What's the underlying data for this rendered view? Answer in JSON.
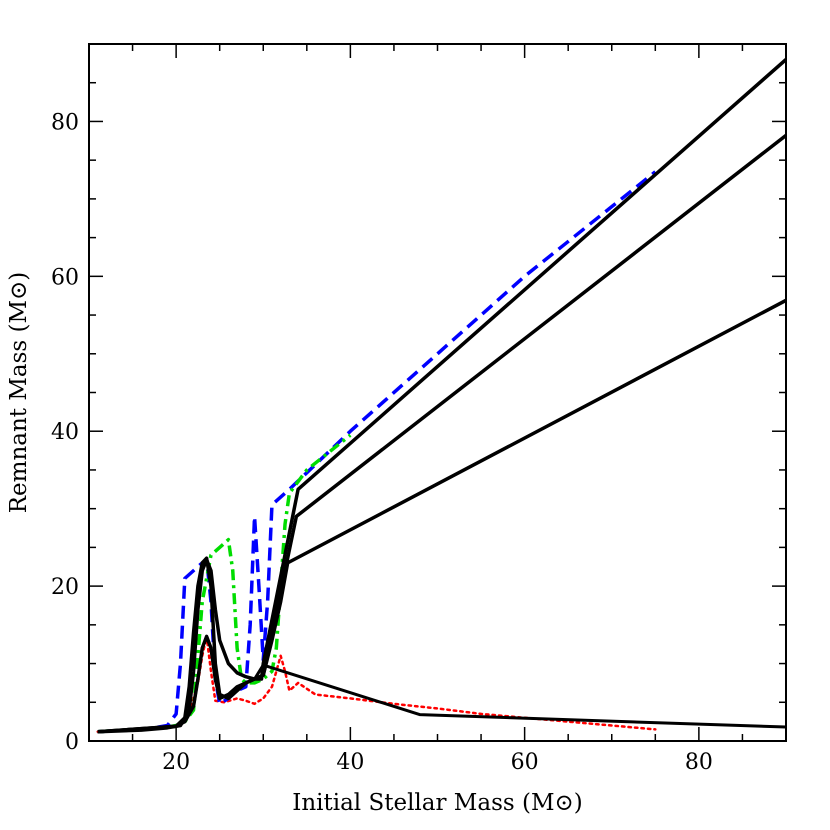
{
  "chart_data": {
    "type": "line",
    "xlabel": "Initial Stellar Mass (M⊙)",
    "ylabel": "Remnant Mass (M⊙)",
    "xlim": [
      10,
      90
    ],
    "ylim": [
      0,
      90
    ],
    "grid": false,
    "legend": "none",
    "x_ticks": [
      20,
      40,
      60,
      80
    ],
    "y_ticks": [
      0,
      20,
      40,
      60,
      80
    ],
    "x_tick_labels": [
      "20",
      "40",
      "60",
      "80"
    ],
    "y_tick_labels": [
      "0",
      "20",
      "40",
      "60",
      "80"
    ],
    "series": [
      {
        "style": "dotted",
        "color": "#ff0000",
        "width": 2.5,
        "x": [
          11,
          15,
          18,
          20,
          21.5,
          22.5,
          23,
          23.5,
          24,
          24.5,
          25.5,
          27,
          28,
          29,
          30,
          31,
          31.5,
          32,
          32.5,
          33,
          34,
          36,
          40,
          45,
          50,
          55,
          60,
          65,
          70,
          75
        ],
        "y": [
          1.2,
          1.4,
          1.6,
          2.0,
          3.5,
          7.5,
          11.0,
          13.5,
          9.0,
          5.2,
          5.0,
          5.5,
          5.2,
          4.8,
          5.5,
          7.0,
          9.0,
          11.0,
          9.0,
          6.5,
          7.5,
          6.0,
          5.5,
          4.8,
          4.2,
          3.5,
          3.0,
          2.5,
          2.0,
          1.5
        ]
      },
      {
        "style": "dashed",
        "color": "#0000ff",
        "width": 3.5,
        "x": [
          11,
          17,
          19,
          20,
          20.5,
          21,
          22,
          23,
          23.5,
          24,
          24.5,
          25,
          26,
          27,
          28,
          28.5,
          29,
          29.5,
          30,
          30.5,
          31,
          32,
          33,
          40,
          50,
          60,
          70,
          75
        ],
        "y": [
          1.2,
          1.6,
          2.0,
          3.5,
          10.0,
          21.0,
          22.0,
          23.0,
          23.5,
          18.0,
          8.0,
          4.8,
          5.5,
          6.5,
          7.0,
          15.0,
          29.0,
          20.0,
          10.5,
          18.0,
          30.5,
          31.5,
          32.5,
          40.0,
          50.0,
          60.0,
          69.0,
          73.5
        ]
      },
      {
        "style": "dashdot",
        "color": "#00dd00",
        "width": 3.5,
        "x": [
          11,
          17,
          19,
          20,
          21,
          22,
          23,
          24,
          25,
          26,
          26.5,
          27,
          27.5,
          28,
          29,
          30,
          31,
          31.5,
          32,
          32.5,
          33,
          35,
          40
        ],
        "y": [
          1.2,
          1.6,
          1.8,
          2.0,
          2.5,
          4.0,
          18.0,
          24.0,
          25.0,
          26.0,
          22.0,
          12.0,
          8.0,
          7.5,
          7.5,
          8.0,
          9.0,
          12.0,
          20.0,
          28.0,
          32.0,
          35.0,
          39.5
        ]
      },
      {
        "style": "solid",
        "color": "#000000",
        "width": 3.5,
        "x": [
          11,
          16,
          19,
          20.5,
          21.5,
          22,
          22.5,
          23,
          23.5,
          24,
          24.5,
          25,
          26,
          27,
          28,
          29,
          29.8,
          30,
          34,
          90
        ],
        "y": [
          1.2,
          1.4,
          1.7,
          2.0,
          4.0,
          9.0,
          17.0,
          22.0,
          23.4,
          22.0,
          17.0,
          13.0,
          10.0,
          8.8,
          8.3,
          8.0,
          8.0,
          10.0,
          32.5,
          88.0
        ]
      },
      {
        "style": "solid",
        "color": "#000000",
        "width": 3.5,
        "x": [
          11,
          20,
          21,
          21.5,
          22,
          22.5,
          23,
          23.5,
          24,
          24.5,
          25,
          26,
          27,
          28,
          29,
          30,
          33.8,
          90
        ],
        "y": [
          1.2,
          1.9,
          3.0,
          7.0,
          14.0,
          20.0,
          23.0,
          23.6,
          20.0,
          10.0,
          6.0,
          5.5,
          6.5,
          7.5,
          8.0,
          8.5,
          29.0,
          78.2
        ]
      },
      {
        "style": "solid",
        "color": "#000000",
        "width": 3.5,
        "x": [
          11,
          20,
          21,
          22,
          22.5,
          23,
          23.5,
          24,
          24.5,
          25,
          26,
          27,
          28,
          29,
          30,
          31,
          32,
          32.8,
          90
        ],
        "y": [
          1.2,
          1.9,
          2.5,
          4.5,
          8.0,
          12.0,
          13.5,
          12.0,
          8.0,
          5.5,
          6.0,
          7.0,
          7.5,
          8.0,
          8.5,
          13.0,
          18.0,
          23.0,
          56.9
        ]
      },
      {
        "style": "solid",
        "color": "#000000",
        "width": 3.0,
        "x": [
          11,
          20,
          21,
          22,
          22.5,
          23,
          23.5,
          24,
          24.5,
          25,
          26,
          27,
          28,
          29,
          30,
          48,
          90
        ],
        "y": [
          1.2,
          1.9,
          2.5,
          4.5,
          8.0,
          12.0,
          13.5,
          12.0,
          8.0,
          5.5,
          6.0,
          7.0,
          7.5,
          8.0,
          9.8,
          3.4,
          1.8
        ]
      }
    ]
  }
}
